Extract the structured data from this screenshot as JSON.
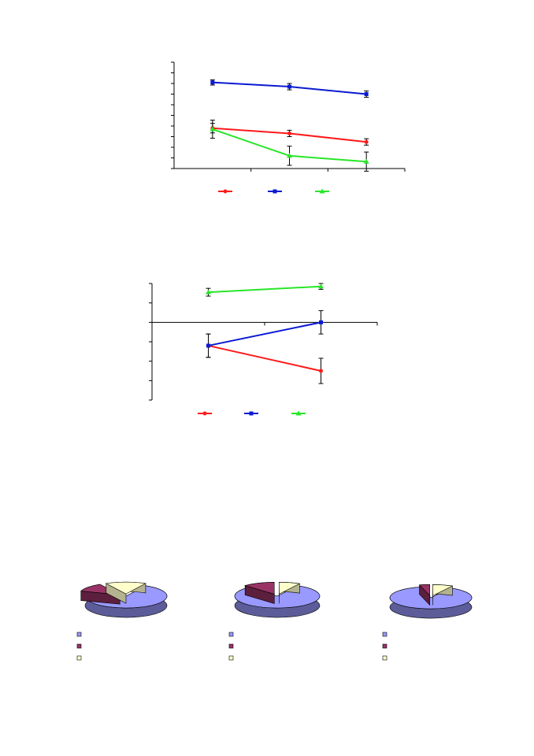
{
  "colors": {
    "red": "#ff1a1a",
    "blue": "#0a1ad2",
    "green": "#28e628",
    "pie_main": "#9999ff",
    "pie_main_side": "#5c5c99",
    "pie_second": "#993366",
    "pie_second_side": "#5c1f3d",
    "pie_third": "#ffffcc",
    "pie_third_side": "#b3b38f",
    "axis": "#000000"
  },
  "chart_data": [
    {
      "type": "line",
      "x": [
        1,
        2,
        3
      ],
      "xlim": [
        0.5,
        3.5
      ],
      "ylim": [
        0,
        10
      ],
      "y_ticks": 10,
      "legend_placement": "bottom",
      "series": [
        {
          "color_key": "red",
          "marker": "circle",
          "values": [
            3.8,
            3.3,
            2.5
          ],
          "errors": [
            0.45,
            0.3,
            0.3
          ]
        },
        {
          "color_key": "blue",
          "marker": "square",
          "values": [
            8.1,
            7.7,
            7.0
          ],
          "errors": [
            0.25,
            0.3,
            0.3
          ]
        },
        {
          "color_key": "green",
          "marker": "triangle",
          "values": [
            3.7,
            1.2,
            0.65
          ],
          "errors": [
            0.85,
            0.9,
            0.9
          ]
        }
      ]
    },
    {
      "type": "line",
      "x": [
        1,
        2
      ],
      "xlim": [
        0.5,
        2.5
      ],
      "ylim": [
        -4,
        2
      ],
      "y_ticks": 6,
      "legend_placement": "bottom",
      "series": [
        {
          "color_key": "red",
          "marker": "circle",
          "values": [
            -1.2,
            -2.5
          ],
          "errors": [
            0.6,
            0.65
          ]
        },
        {
          "color_key": "blue",
          "marker": "square",
          "values": [
            -1.2,
            0.0
          ],
          "errors": [
            0.6,
            0.6
          ]
        },
        {
          "color_key": "green",
          "marker": "triangle",
          "values": [
            1.55,
            1.85
          ],
          "errors": [
            0.2,
            0.15
          ]
        }
      ]
    },
    {
      "type": "pie",
      "legend_placement": "bottom",
      "values": [
        72,
        12,
        16
      ],
      "color_keys": [
        "pie_main",
        "pie_second",
        "pie_third"
      ],
      "exploded_index": 0
    },
    {
      "type": "pie",
      "legend_placement": "bottom",
      "values": [
        80,
        12,
        8
      ],
      "color_keys": [
        "pie_main",
        "pie_second",
        "pie_third"
      ],
      "exploded_index": 0
    },
    {
      "type": "pie",
      "legend_placement": "bottom",
      "values": [
        88,
        4,
        8
      ],
      "color_keys": [
        "pie_main",
        "pie_second",
        "pie_third"
      ],
      "exploded_index": 0
    }
  ]
}
